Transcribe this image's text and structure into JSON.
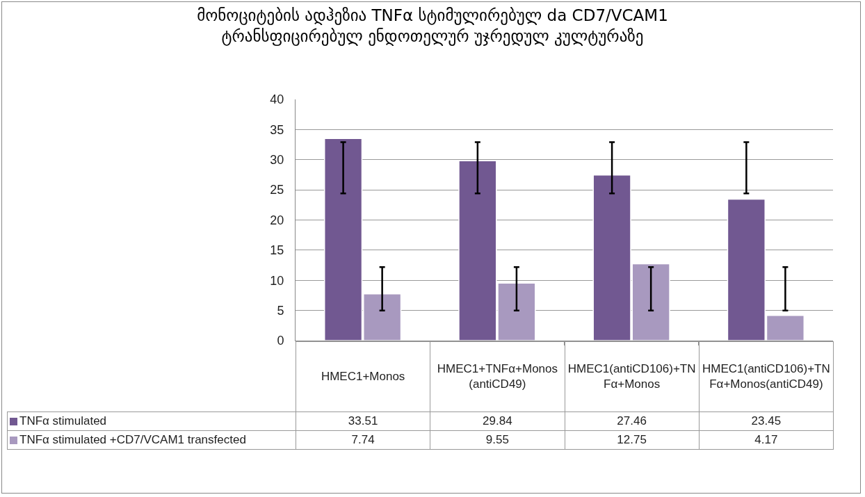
{
  "chart_data": {
    "type": "bar",
    "title": "მონოციტების ადჰეზია TNFα სტიმულირებულ da CD7/VCAM1\nტრანსფიცირებულ ენდოთელურ უჯრედულ კულტურაზე",
    "categories": [
      "HMEC1+Monos",
      "HMEC1+TNFα+Monos(antiCD49)",
      "HMEC1(antiCD106)+TNFα+Monos",
      "HMEC1(antiCD106)+TNFα+Monos(antiCD49)"
    ],
    "series": [
      {
        "name": "TNFα stimulated",
        "color": "#715891",
        "values": [
          33.51,
          29.84,
          27.46,
          23.45
        ],
        "errors": [
          [
            24.4,
            32.9
          ],
          [
            24.4,
            32.9
          ],
          [
            24.4,
            32.9
          ],
          [
            24.4,
            32.9
          ]
        ]
      },
      {
        "name": "TNFα stimulated +CD7/VCAM1 transfected",
        "color": "#a899bf",
        "values": [
          7.74,
          9.55,
          12.75,
          4.17
        ],
        "errors": [
          [
            5,
            12.2
          ],
          [
            5,
            12.2
          ],
          [
            5,
            12.2
          ],
          [
            5,
            12.2
          ]
        ]
      }
    ],
    "ylim": [
      0,
      40
    ],
    "yticks": [
      0,
      5,
      10,
      15,
      20,
      25,
      30,
      35,
      40
    ],
    "grid": "y",
    "legend": "bottom",
    "data_labels": true
  }
}
